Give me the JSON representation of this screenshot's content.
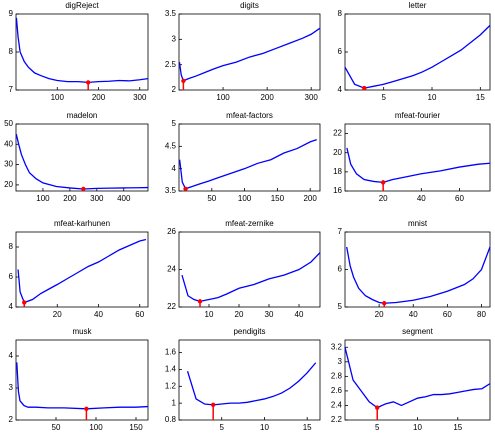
{
  "chart_data": [
    {
      "type": "line",
      "title": "digReject",
      "x": [
        1,
        5,
        10,
        20,
        30,
        45,
        60,
        80,
        100,
        125,
        150,
        175,
        200,
        225,
        250,
        275,
        300,
        320
      ],
      "series": [
        {
          "color": "#0000ff",
          "values": [
            8.9,
            8.4,
            8.0,
            7.75,
            7.6,
            7.45,
            7.38,
            7.3,
            7.25,
            7.22,
            7.22,
            7.2,
            7.22,
            7.23,
            7.25,
            7.24,
            7.27,
            7.3
          ]
        }
      ],
      "marker": {
        "x": 175,
        "y": 7.2,
        "color": "#ff0000"
      },
      "xlim": [
        0,
        320
      ],
      "ylim": [
        7,
        9
      ],
      "xticks": [
        100,
        200,
        300
      ],
      "yticks": [
        7,
        8,
        9
      ]
    },
    {
      "type": "line",
      "title": "digits",
      "x": [
        1,
        5,
        10,
        20,
        40,
        60,
        80,
        100,
        130,
        160,
        190,
        220,
        250,
        280,
        300,
        320
      ],
      "series": [
        {
          "color": "#0000ff",
          "values": [
            2.55,
            2.3,
            2.18,
            2.22,
            2.28,
            2.35,
            2.42,
            2.48,
            2.55,
            2.65,
            2.72,
            2.82,
            2.92,
            3.02,
            3.1,
            3.22
          ]
        }
      ],
      "marker": {
        "x": 10,
        "y": 2.18,
        "color": "#ff0000"
      },
      "xlim": [
        0,
        320
      ],
      "ylim": [
        2,
        3.5
      ],
      "xticks": [
        100,
        200,
        300
      ],
      "yticks": [
        2,
        2.5,
        3,
        3.5
      ]
    },
    {
      "type": "line",
      "title": "letter",
      "x": [
        1,
        2,
        3,
        4,
        5,
        6,
        7,
        8,
        9,
        10,
        11,
        12,
        13,
        14,
        15,
        16
      ],
      "series": [
        {
          "color": "#0000ff",
          "values": [
            5.2,
            4.3,
            4.1,
            4.2,
            4.3,
            4.45,
            4.6,
            4.75,
            4.95,
            5.2,
            5.5,
            5.8,
            6.1,
            6.5,
            6.9,
            7.4
          ]
        }
      ],
      "marker": {
        "x": 3,
        "y": 4.1,
        "color": "#ff0000"
      },
      "xlim": [
        1,
        16
      ],
      "ylim": [
        4,
        8
      ],
      "xticks": [
        5,
        10,
        15
      ],
      "yticks": [
        4,
        6,
        8
      ]
    },
    {
      "type": "line",
      "title": "madelon",
      "x": [
        1,
        10,
        20,
        35,
        50,
        75,
        100,
        150,
        200,
        250,
        300,
        350,
        400,
        450,
        490
      ],
      "series": [
        {
          "color": "#0000ff",
          "values": [
            45,
            40,
            35,
            30,
            26,
            23,
            21,
            19.2,
            18.5,
            18,
            18.3,
            18.4,
            18.5,
            18.6,
            18.7
          ]
        }
      ],
      "marker": {
        "x": 250,
        "y": 18,
        "color": "#ff0000"
      },
      "xlim": [
        0,
        490
      ],
      "ylim": [
        17,
        50
      ],
      "xticks": [
        100,
        200,
        300,
        400
      ],
      "yticks": [
        20,
        30,
        40,
        50
      ]
    },
    {
      "type": "line",
      "title": "mfeat-factors",
      "x": [
        1,
        5,
        10,
        20,
        30,
        45,
        60,
        80,
        100,
        120,
        140,
        160,
        180,
        200,
        210
      ],
      "series": [
        {
          "color": "#0000ff",
          "values": [
            4.2,
            3.7,
            3.55,
            3.6,
            3.65,
            3.72,
            3.8,
            3.9,
            4.0,
            4.12,
            4.2,
            4.35,
            4.45,
            4.6,
            4.65
          ]
        }
      ],
      "marker": {
        "x": 10,
        "y": 3.55,
        "color": "#ff0000"
      },
      "xlim": [
        0,
        215
      ],
      "ylim": [
        3.5,
        5
      ],
      "xticks": [
        50,
        100,
        150,
        200
      ],
      "yticks": [
        3.5,
        4,
        4.5,
        5
      ]
    },
    {
      "type": "line",
      "title": "mfeat-fourier",
      "x": [
        1,
        3,
        6,
        10,
        15,
        20,
        25,
        30,
        40,
        50,
        60,
        70,
        76
      ],
      "series": [
        {
          "color": "#0000ff",
          "values": [
            20.5,
            18.8,
            17.8,
            17.2,
            17.0,
            16.9,
            17.2,
            17.4,
            17.8,
            18.1,
            18.5,
            18.8,
            18.9
          ]
        }
      ],
      "marker": {
        "x": 20,
        "y": 16.9,
        "color": "#ff0000"
      },
      "xlim": [
        0,
        76
      ],
      "ylim": [
        16,
        23
      ],
      "xticks": [
        20,
        40,
        60
      ],
      "yticks": [
        16,
        18,
        20,
        22
      ]
    },
    {
      "type": "line",
      "title": "mfeat-karhunen",
      "x": [
        1,
        2,
        4,
        8,
        12,
        16,
        20,
        25,
        30,
        35,
        40,
        45,
        50,
        55,
        60,
        63
      ],
      "series": [
        {
          "color": "#0000ff",
          "values": [
            6.5,
            5.0,
            4.3,
            4.5,
            4.9,
            5.2,
            5.5,
            5.9,
            6.3,
            6.7,
            7.0,
            7.4,
            7.8,
            8.1,
            8.4,
            8.5
          ]
        }
      ],
      "marker": {
        "x": 4,
        "y": 4.3,
        "color": "#ff0000"
      },
      "xlim": [
        0,
        64
      ],
      "ylim": [
        4,
        9
      ],
      "xticks": [
        20,
        40,
        60
      ],
      "yticks": [
        4,
        6,
        8
      ]
    },
    {
      "type": "line",
      "title": "mfeat-zernike",
      "x": [
        1,
        3,
        5,
        7,
        10,
        13,
        16,
        20,
        25,
        30,
        35,
        40,
        44,
        47
      ],
      "series": [
        {
          "color": "#0000ff",
          "values": [
            23.7,
            22.6,
            22.4,
            22.3,
            22.4,
            22.5,
            22.7,
            23.0,
            23.2,
            23.5,
            23.7,
            24.0,
            24.4,
            24.9
          ]
        }
      ],
      "marker": {
        "x": 7,
        "y": 22.3,
        "color": "#ff0000"
      },
      "xlim": [
        0,
        47
      ],
      "ylim": [
        22,
        26
      ],
      "xticks": [
        10,
        20,
        30,
        40
      ],
      "yticks": [
        22,
        24,
        26
      ]
    },
    {
      "type": "line",
      "title": "mnist",
      "x": [
        1,
        3,
        5,
        8,
        12,
        16,
        20,
        23,
        30,
        40,
        50,
        60,
        70,
        75,
        80,
        85
      ],
      "series": [
        {
          "color": "#0000ff",
          "values": [
            6.6,
            6.1,
            5.8,
            5.5,
            5.3,
            5.2,
            5.12,
            5.1,
            5.12,
            5.18,
            5.28,
            5.42,
            5.6,
            5.75,
            6.0,
            6.6
          ]
        }
      ],
      "marker": {
        "x": 23,
        "y": 5.1,
        "color": "#ff0000"
      },
      "xlim": [
        0,
        85
      ],
      "ylim": [
        5,
        7
      ],
      "xticks": [
        20,
        40,
        60,
        80
      ],
      "yticks": [
        5,
        6,
        7
      ]
    },
    {
      "type": "line",
      "title": "musk",
      "x": [
        1,
        3,
        5,
        10,
        15,
        25,
        40,
        60,
        88,
        110,
        130,
        150,
        165
      ],
      "series": [
        {
          "color": "#0000ff",
          "values": [
            3.8,
            2.9,
            2.6,
            2.45,
            2.4,
            2.4,
            2.38,
            2.38,
            2.35,
            2.38,
            2.4,
            2.4,
            2.42
          ]
        }
      ],
      "marker": {
        "x": 88,
        "y": 2.35,
        "color": "#ff0000"
      },
      "xlim": [
        0,
        165
      ],
      "ylim": [
        2,
        4.5
      ],
      "xticks": [
        50,
        100,
        150
      ],
      "yticks": [
        2,
        3,
        4
      ]
    },
    {
      "type": "line",
      "title": "pendigits",
      "x": [
        1,
        2,
        3,
        4,
        5,
        6,
        7,
        8,
        9,
        10,
        11,
        12,
        13,
        14,
        15,
        16
      ],
      "series": [
        {
          "color": "#0000ff",
          "values": [
            1.38,
            1.05,
            0.99,
            0.98,
            0.99,
            1.0,
            1.0,
            1.01,
            1.03,
            1.05,
            1.08,
            1.12,
            1.18,
            1.26,
            1.36,
            1.48
          ]
        }
      ],
      "marker": {
        "x": 4,
        "y": 0.98,
        "color": "#ff0000"
      },
      "xlim": [
        0,
        16.5
      ],
      "ylim": [
        0.8,
        1.75
      ],
      "xticks": [
        5,
        10,
        15
      ],
      "yticks": [
        0.8,
        1,
        1.2,
        1.4,
        1.6
      ]
    },
    {
      "type": "line",
      "title": "segment",
      "x": [
        1,
        2,
        3,
        4,
        5,
        6,
        7,
        8,
        9,
        10,
        11,
        12,
        13,
        14,
        15,
        16,
        17,
        18,
        19
      ],
      "series": [
        {
          "color": "#0000ff",
          "values": [
            3.2,
            2.75,
            2.6,
            2.45,
            2.37,
            2.42,
            2.45,
            2.4,
            2.45,
            2.5,
            2.52,
            2.55,
            2.55,
            2.56,
            2.58,
            2.6,
            2.62,
            2.63,
            2.7
          ]
        }
      ],
      "marker": {
        "x": 5,
        "y": 2.37,
        "color": "#ff0000"
      },
      "xlim": [
        1,
        19
      ],
      "ylim": [
        2.2,
        3.3
      ],
      "xticks": [
        5,
        10,
        15
      ],
      "yticks": [
        2.2,
        2.4,
        2.6,
        2.8,
        3,
        3.2
      ]
    }
  ]
}
